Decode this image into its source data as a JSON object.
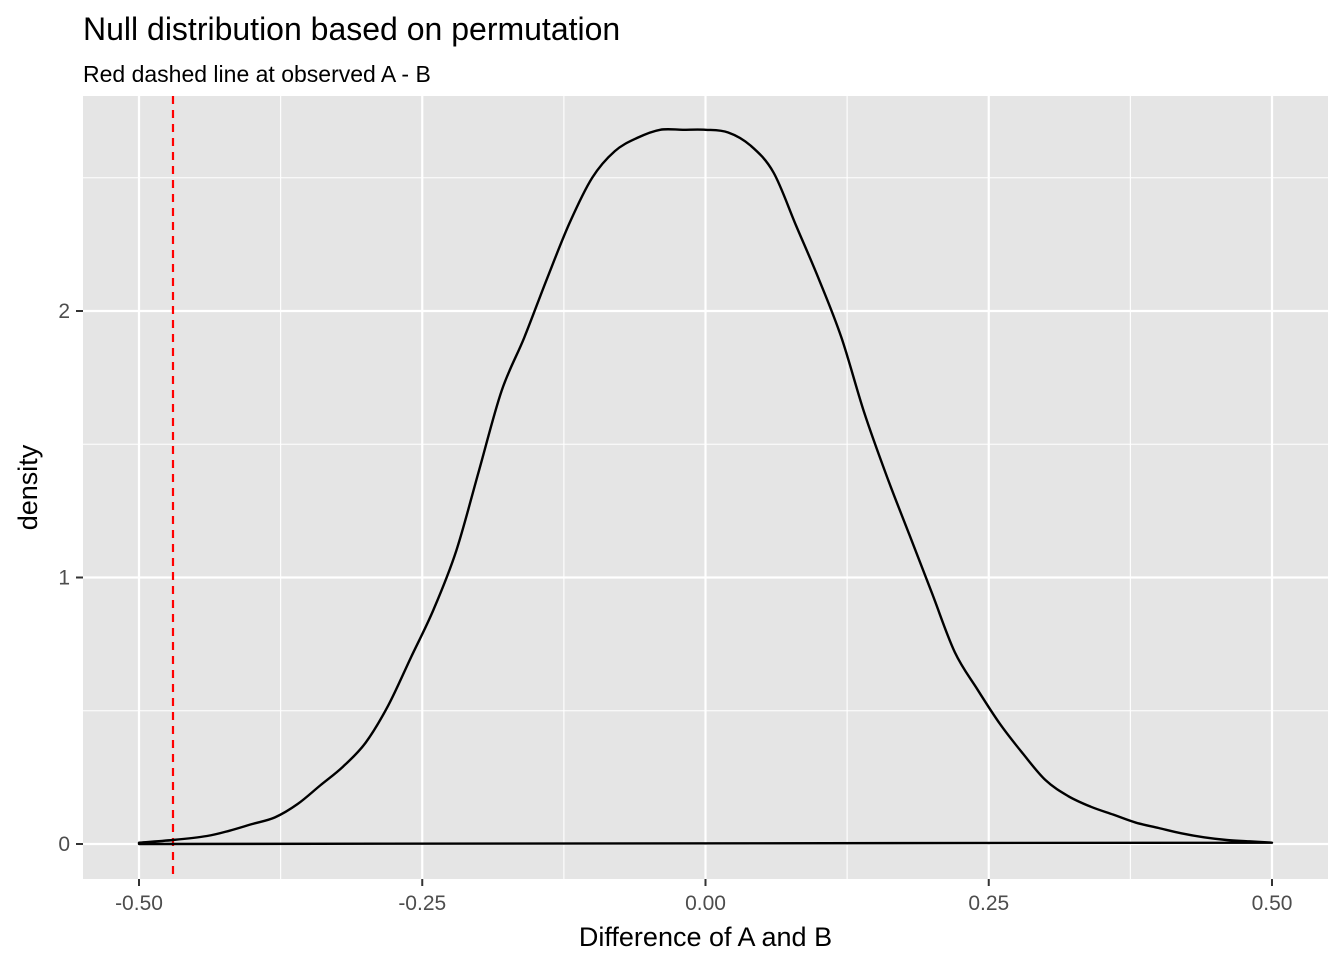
{
  "chart_data": {
    "type": "line",
    "title": "Null distribution based on permutation",
    "subtitle": "Red dashed line at observed A - B",
    "xlabel": "Difference of A and B",
    "ylabel": "density",
    "xlim": [
      -0.5,
      0.5
    ],
    "ylim": [
      0,
      2.68
    ],
    "x_ticks": [
      -0.5,
      -0.25,
      0.0,
      0.25,
      0.5
    ],
    "x_tick_labels": [
      "-0.50",
      "-0.25",
      "0.00",
      "0.25",
      "0.50"
    ],
    "y_ticks": [
      0,
      1,
      2
    ],
    "y_tick_labels": [
      "0",
      "1",
      "2"
    ],
    "grid": true,
    "background": "#e5e5e5",
    "grid_color": "#ffffff",
    "series": [
      {
        "color": "#000000",
        "x": [
          -0.5,
          -0.47,
          -0.44,
          -0.42,
          -0.4,
          -0.38,
          -0.36,
          -0.34,
          -0.32,
          -0.3,
          -0.28,
          -0.26,
          -0.24,
          -0.22,
          -0.2,
          -0.18,
          -0.16,
          -0.14,
          -0.12,
          -0.1,
          -0.08,
          -0.06,
          -0.04,
          -0.02,
          0.0,
          0.02,
          0.04,
          0.06,
          0.08,
          0.1,
          0.12,
          0.14,
          0.16,
          0.18,
          0.2,
          0.22,
          0.24,
          0.26,
          0.28,
          0.3,
          0.32,
          0.34,
          0.36,
          0.38,
          0.4,
          0.42,
          0.44,
          0.46,
          0.48,
          0.5
        ],
        "y": [
          0.005,
          0.015,
          0.03,
          0.05,
          0.075,
          0.1,
          0.15,
          0.22,
          0.29,
          0.38,
          0.52,
          0.7,
          0.88,
          1.1,
          1.4,
          1.7,
          1.9,
          2.12,
          2.33,
          2.5,
          2.6,
          2.65,
          2.68,
          2.68,
          2.68,
          2.67,
          2.62,
          2.52,
          2.32,
          2.12,
          1.9,
          1.62,
          1.38,
          1.16,
          0.94,
          0.72,
          0.58,
          0.45,
          0.34,
          0.24,
          0.18,
          0.14,
          0.11,
          0.08,
          0.06,
          0.04,
          0.025,
          0.015,
          0.01,
          0.005
        ]
      }
    ],
    "reference_line": {
      "x": -0.47,
      "color": "#ff0000",
      "style": "dashed"
    }
  }
}
